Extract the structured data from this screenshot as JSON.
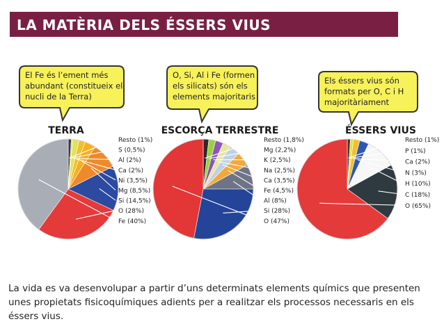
{
  "title": "LA MATÈRIA DELS ÉSSERS VIUS",
  "caption": "La vida es va desenvolupar a partir d’uns determinats elements químics que presenten unes propietats fisicoquímiques adients per a realitzar els processos necessaris en els éssers vius.",
  "chart_data": [
    {
      "type": "pie",
      "title": "TERRA",
      "note": [
        "El Fe és l’ement més",
        "abundant (constitueix el",
        "nucli de la Terra)"
      ],
      "slices": [
        {
          "label": "Resto (1%)",
          "value": 1,
          "color": "#3a3a3a"
        },
        {
          "label": "S (0,5%)",
          "value": 0.5,
          "color": "#e8df3a"
        },
        {
          "label": "Al (2%)",
          "value": 2,
          "color": "#dfe35a"
        },
        {
          "label": "Ca (2%)",
          "value": 2,
          "color": "#f0c030"
        },
        {
          "label": "Ni (3,5%)",
          "value": 3.5,
          "color": "#f6b020"
        },
        {
          "label": "Mg (8,5%)",
          "value": 8.5,
          "color": "#ee8a2a"
        },
        {
          "label": "Si (14,5%)",
          "value": 14.5,
          "color": "#2b4aa0"
        },
        {
          "label": "O (28%)",
          "value": 28,
          "color": "#e43a3a"
        },
        {
          "label": "Fe (40%)",
          "value": 40,
          "color": "#a9aeb6"
        }
      ]
    },
    {
      "type": "pie",
      "title": "ESCORÇA TERRESTRE",
      "note": [
        "O, Si, Al i Fe (formen",
        "els silicats) són els",
        "elements majoritaris"
      ],
      "slices": [
        {
          "label": "Resto (1,8%)",
          "value": 1.8,
          "color": "#2a2a2a"
        },
        {
          "label": "Mg (2,2%)",
          "value": 2.2,
          "color": "#9fcf3a"
        },
        {
          "label": "K (2,5%)",
          "value": 2.5,
          "color": "#8e56b8"
        },
        {
          "label": "Na (2,5%)",
          "value": 2.5,
          "color": "#e6e6a0"
        },
        {
          "label": "Ca (3,5%)",
          "value": 3.5,
          "color": "#bfd1e6"
        },
        {
          "label": "Fe (4,5%)",
          "value": 4.5,
          "color": "#f2a93a"
        },
        {
          "label": "Al (8%)",
          "value": 8,
          "color": "#6d7486"
        },
        {
          "label": "Si (28%)",
          "value": 28,
          "color": "#24449a"
        },
        {
          "label": "O (47%)",
          "value": 47,
          "color": "#e33636"
        }
      ]
    },
    {
      "type": "pie",
      "title": "ÉSSERS VIUS",
      "note": [
        "Els éssers vius són",
        "formats per O, C i H",
        "majoritàriament"
      ],
      "slices": [
        {
          "label": "Resto (1%)",
          "value": 1,
          "color": "#3a3a3a"
        },
        {
          "label": "P (1%)",
          "value": 1,
          "color": "#e6df3a"
        },
        {
          "label": "Ca (2%)",
          "value": 2,
          "color": "#f0c030"
        },
        {
          "label": "N (3%)",
          "value": 3,
          "color": "#2f58b4"
        },
        {
          "label": "H (10%)",
          "value": 10,
          "color": "#f7f7f7"
        },
        {
          "label": "C (18%)",
          "value": 18,
          "color": "#2f3a40"
        },
        {
          "label": "O (65%)",
          "value": 65,
          "color": "#e43a3a"
        }
      ]
    }
  ]
}
